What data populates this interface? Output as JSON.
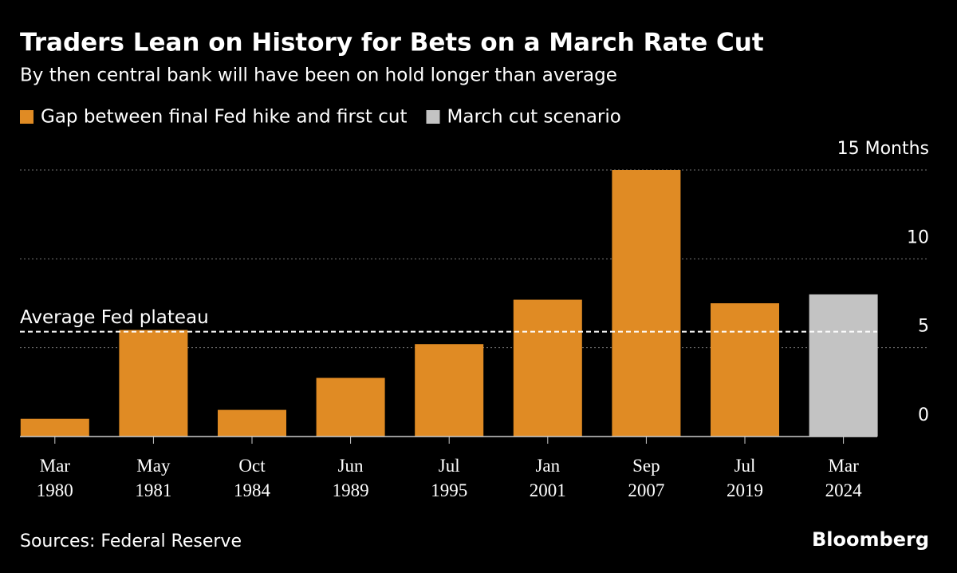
{
  "chart_data": {
    "type": "bar",
    "title": "Traders Lean on History for Bets on a March Rate Cut",
    "subtitle": "By then central bank will have been on hold longer than average",
    "categories": [
      "Mar 1980",
      "May 1981",
      "Oct 1984",
      "Jun 1989",
      "Jul 1995",
      "Jan 2001",
      "Sep 2007",
      "Jul 2019",
      "Mar 2024"
    ],
    "series": [
      {
        "name": "Gap between final Fed hike and first cut",
        "color": "#e08b24",
        "values": [
          1,
          6,
          1.5,
          3.3,
          5.2,
          7.7,
          15,
          7.5,
          null
        ]
      },
      {
        "name": "March cut scenario",
        "color": "#c3c3c3",
        "values": [
          null,
          null,
          null,
          null,
          null,
          null,
          null,
          null,
          8
        ]
      }
    ],
    "ylim": [
      0,
      15
    ],
    "yticks": [
      0,
      5,
      10,
      {
        "value": 15,
        "label": "15 Months"
      }
    ],
    "grid": true,
    "annotations": [
      {
        "text": "Average Fed plateau",
        "value": 5.9
      }
    ],
    "source": "Sources: Federal Reserve",
    "brand": "Bloomberg"
  }
}
